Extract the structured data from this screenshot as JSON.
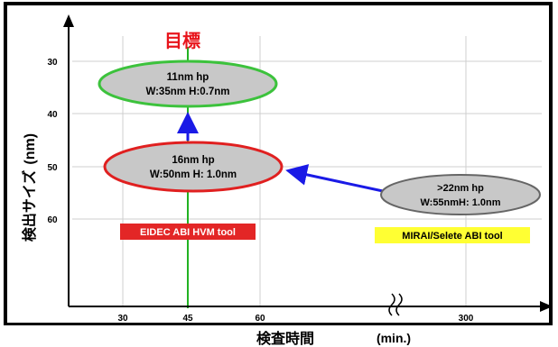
{
  "goal_label": "目標",
  "y_axis": {
    "label_jp": "検出サイズ",
    "label_unit": "(nm)",
    "ticks": [
      "30",
      "40",
      "50",
      "60"
    ]
  },
  "x_axis": {
    "label_jp": "検査時間",
    "label_unit": "(min.)",
    "ticks": [
      "30",
      "45",
      "60",
      "300"
    ]
  },
  "nodes": [
    {
      "id": "11nm",
      "line1": "11nm hp",
      "line2": "W:35nm H:0.7nm",
      "border": "#3cc23c"
    },
    {
      "id": "16nm",
      "line1": "16nm hp",
      "line2": "W:50nm H: 1.0nm",
      "border": "#e02020"
    },
    {
      "id": "22nm",
      "line1": ">22nm hp",
      "line2": "W:55nmH: 1.0nm",
      "border": "#666666"
    }
  ],
  "tags": {
    "eidec": "EIDEC ABI HVM tool",
    "mirai": "MIRAI/Selete ABI tool"
  },
  "colors": {
    "goal": "#e8141b",
    "ellipse_fill": "#c8c8c8",
    "arrow": "#1a1ae6",
    "eidec_bg": "#e32626",
    "mirai_bg": "#ffff33",
    "grid": "#cfcfcf",
    "green_line": "#22b222"
  }
}
